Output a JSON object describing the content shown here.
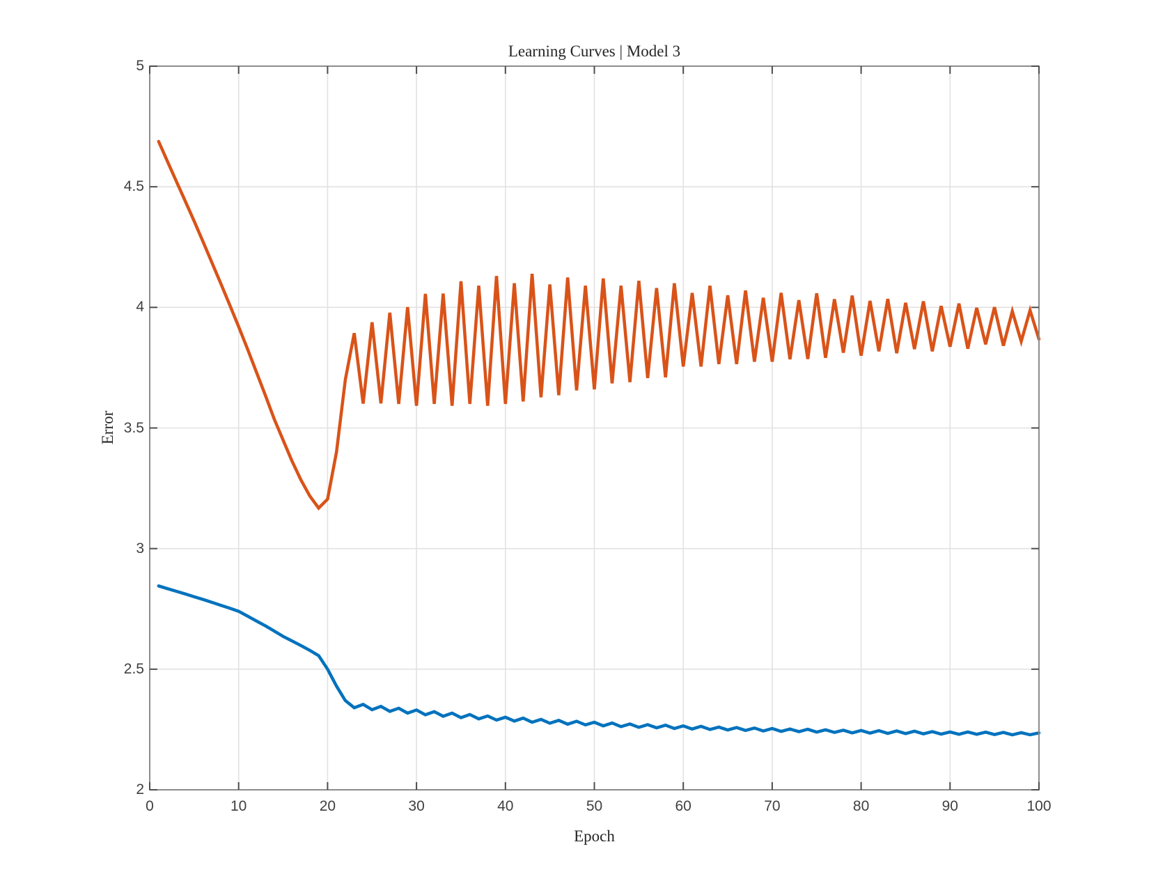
{
  "chart_data": {
    "type": "line",
    "title": "Learning Curves | Model 3",
    "xlabel": "Epoch",
    "ylabel": "Error",
    "xlim": [
      0,
      100
    ],
    "ylim": [
      2,
      5
    ],
    "xticks": [
      0,
      10,
      20,
      30,
      40,
      50,
      60,
      70,
      80,
      90,
      100
    ],
    "yticks": [
      2,
      2.5,
      3,
      3.5,
      4,
      4.5,
      5
    ],
    "grid": true,
    "legend": "none",
    "colors": {
      "series_1": "#0072BD",
      "series_2": "#D95319",
      "grid_line": "#e2e2e2",
      "axis_box": "#8c8c8c",
      "tick_mark": "#4d4d4d",
      "tick_text": "#404040",
      "label_text": "#262626",
      "background": "#ffffff"
    },
    "x_start": 1,
    "x_step": 1,
    "series": [
      {
        "name": "series_1",
        "color": "#0072BD",
        "values": [
          2.845,
          2.834,
          2.823,
          2.812,
          2.8,
          2.789,
          2.777,
          2.765,
          2.753,
          2.74,
          2.72,
          2.7,
          2.68,
          2.658,
          2.636,
          2.617,
          2.598,
          2.578,
          2.556,
          2.5,
          2.43,
          2.37,
          2.34,
          2.354,
          2.332,
          2.346,
          2.325,
          2.338,
          2.318,
          2.331,
          2.311,
          2.324,
          2.305,
          2.318,
          2.299,
          2.312,
          2.294,
          2.306,
          2.289,
          2.301,
          2.285,
          2.297,
          2.28,
          2.292,
          2.276,
          2.288,
          2.272,
          2.284,
          2.269,
          2.28,
          2.265,
          2.277,
          2.262,
          2.273,
          2.259,
          2.27,
          2.257,
          2.268,
          2.254,
          2.265,
          2.252,
          2.263,
          2.25,
          2.26,
          2.248,
          2.258,
          2.246,
          2.256,
          2.244,
          2.254,
          2.242,
          2.252,
          2.241,
          2.251,
          2.239,
          2.249,
          2.238,
          2.247,
          2.236,
          2.246,
          2.235,
          2.245,
          2.234,
          2.244,
          2.233,
          2.243,
          2.232,
          2.241,
          2.231,
          2.24,
          2.23,
          2.24,
          2.23,
          2.239,
          2.229,
          2.238,
          2.228,
          2.237,
          2.228,
          2.236
        ]
      },
      {
        "name": "series_2",
        "color": "#D95319",
        "values": [
          4.688,
          4.605,
          4.522,
          4.44,
          4.357,
          4.272,
          4.185,
          4.098,
          4.01,
          3.92,
          3.827,
          3.732,
          3.636,
          3.537,
          3.45,
          3.363,
          3.285,
          3.218,
          3.168,
          3.205,
          3.4,
          3.7,
          3.893,
          3.601,
          3.938,
          3.602,
          3.978,
          3.6,
          4.001,
          3.592,
          4.056,
          3.6,
          4.057,
          3.592,
          4.108,
          3.6,
          4.09,
          3.592,
          4.13,
          3.6,
          4.1,
          3.61,
          4.139,
          3.627,
          4.095,
          3.636,
          4.124,
          3.656,
          4.09,
          3.66,
          4.12,
          3.685,
          4.09,
          3.69,
          4.11,
          3.707,
          4.08,
          3.71,
          4.1,
          3.755,
          4.06,
          3.755,
          4.09,
          3.765,
          4.05,
          3.765,
          4.07,
          3.775,
          4.04,
          3.775,
          4.06,
          3.785,
          4.03,
          3.786,
          4.058,
          3.791,
          4.034,
          3.812,
          4.049,
          3.8,
          4.027,
          3.818,
          4.035,
          3.81,
          4.019,
          3.827,
          4.025,
          3.818,
          4.006,
          3.837,
          4.016,
          3.829,
          3.998,
          3.847,
          4.001,
          3.841,
          3.984,
          3.859,
          3.988,
          3.868
        ]
      }
    ]
  }
}
